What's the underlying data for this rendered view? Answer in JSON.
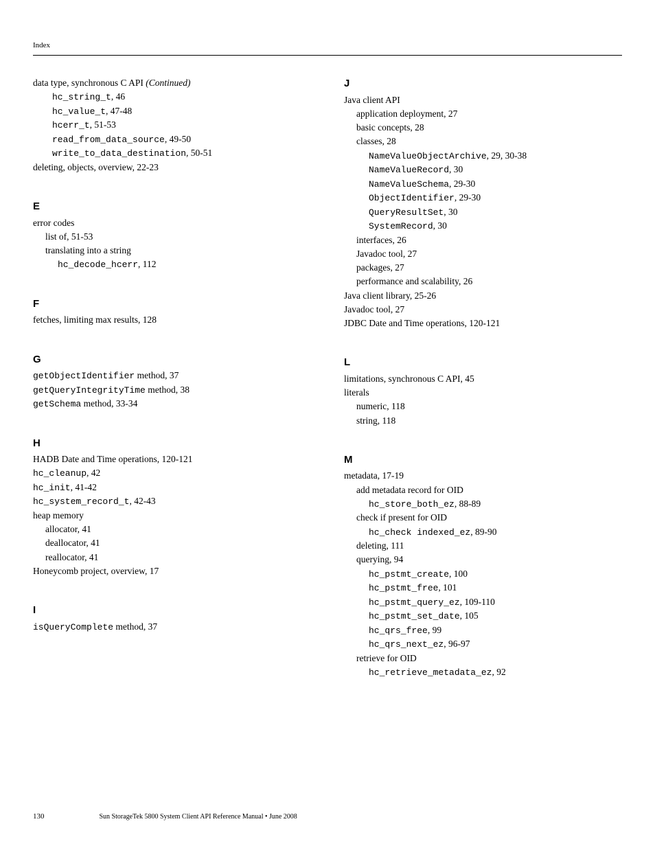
{
  "header": "Index",
  "left": {
    "continued": {
      "text": "data type, synchronous C API ",
      "suffix": "(Continued)"
    },
    "continued_items": [
      {
        "code": "hc_string_t",
        "text": ",   46"
      },
      {
        "code": "hc_value_t",
        "text": ",   47-48"
      },
      {
        "code": "hcerr_t",
        "text": ",   51-53"
      },
      {
        "code": "read_from_data_source",
        "text": ",   49-50"
      },
      {
        "code": "write_to_data_destination",
        "text": ",   50-51"
      }
    ],
    "deleting": "deleting, objects, overview,   22-23",
    "E": {
      "letter": "E",
      "l1": "error codes",
      "l2": "list of,   51-53",
      "l3": "translating into a string",
      "l4_code": "hc_decode_hcerr",
      "l4_text": ",   112"
    },
    "F": {
      "letter": "F",
      "l1": "fetches, limiting max results,   128"
    },
    "G": {
      "letter": "G",
      "g1_code": "getObjectIdentifier",
      "g1_text": " method,   37",
      "g2_code": "getQueryIntegrityTime",
      "g2_text": " method,   38",
      "g3_code": "getSchema",
      "g3_text": " method,   33-34"
    },
    "H": {
      "letter": "H",
      "h1": "HADB Date and Time operations,   120-121",
      "h2_code": "hc_cleanup",
      "h2_text": ",   42",
      "h3_code": "hc_init",
      "h3_text": ",   41-42",
      "h4_code": "hc_system_record_t",
      "h4_text": ",   42-43",
      "h5": "heap memory",
      "h6": "allocator,   41",
      "h7": "deallocator,   41",
      "h8": "reallocator,   41",
      "h9": "Honeycomb project, overview,   17"
    },
    "I": {
      "letter": "I",
      "i1_code": "isQueryComplete",
      "i1_text": " method,   37"
    }
  },
  "right": {
    "J": {
      "letter": "J",
      "j1": "Java client API",
      "j2": "application deployment,   27",
      "j3": "basic concepts,   28",
      "j4": "classes,   28",
      "j5_code": "NameValueObjectArchive",
      "j5_text": ",   29, 30-38",
      "j6_code": "NameValueRecord",
      "j6_text": ",   30",
      "j7_code": "NameValueSchema",
      "j7_text": ",   29-30",
      "j8_code": "ObjectIdentifier",
      "j8_text": ",   29-30",
      "j9_code": "QueryResultSet",
      "j9_text": ",   30",
      "j10_code": "SystemRecord",
      "j10_text": ",   30",
      "j11": "interfaces,   26",
      "j12": "Javadoc tool,   27",
      "j13": "packages,   27",
      "j14": "performance and scalability,   26",
      "j15": "Java client library,   25-26",
      "j16": "Javadoc tool,   27",
      "j17": "JDBC Date and Time operations,   120-121"
    },
    "L": {
      "letter": "L",
      "l1": "limitations, synchronous C API,   45",
      "l2": "literals",
      "l3": "numeric,   118",
      "l4": "string,   118"
    },
    "M": {
      "letter": "M",
      "m1": "metadata,   17-19",
      "m2": "add metadata record for OID",
      "m3_code": "hc_store_both_ez",
      "m3_text": ",   88-89",
      "m4": "check if present for OID",
      "m5_code": "hc_check indexed_ez",
      "m5_text": ",   89-90",
      "m6": "deleting,   111",
      "m7": "querying,   94",
      "m8_code": "hc_pstmt_create",
      "m8_text": ",   100",
      "m9_code": "hc_pstmt_free",
      "m9_text": ",   101",
      "m10_code": "hc_pstmt_query_ez",
      "m10_text": ",   109-110",
      "m11_code": "hc_pstmt_set_date",
      "m11_text": ",   105",
      "m12_code": "hc_qrs_free",
      "m12_text": ",   99",
      "m13_code": "hc_qrs_next_ez",
      "m13_text": ",   96-97",
      "m14": "retrieve for OID",
      "m15_code": "hc_retrieve_metadata_ez",
      "m15_text": ",   92"
    }
  },
  "footer": {
    "page": "130",
    "text": "Sun StorageTek 5800 System Client API Reference Manual   •   June 2008"
  }
}
